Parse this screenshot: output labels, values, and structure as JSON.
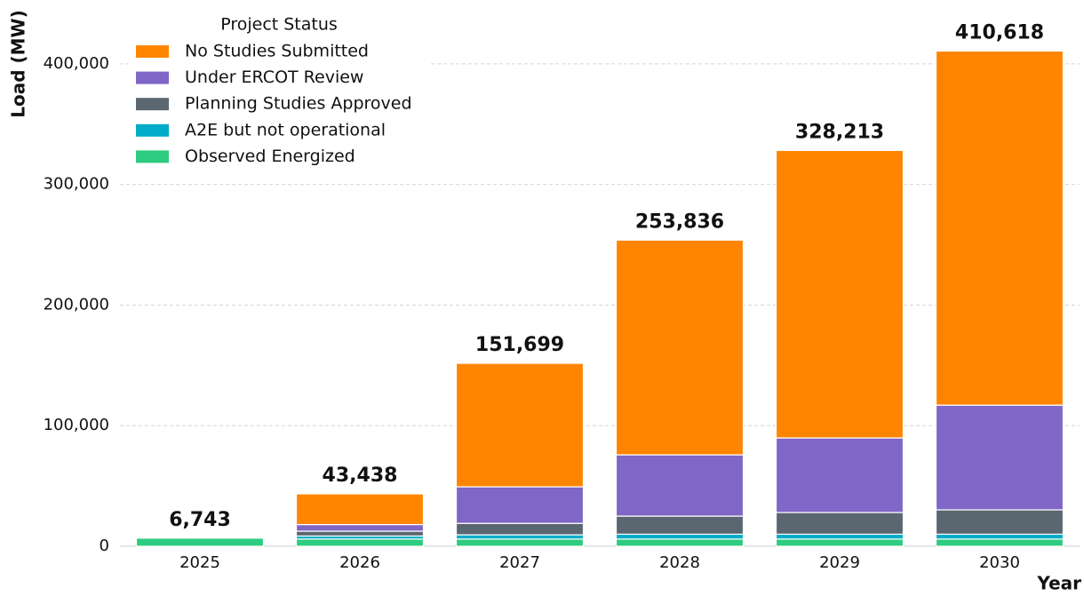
{
  "chart_data": {
    "type": "stacked_bar",
    "y_label": "Load (MW)",
    "x_label": "Year",
    "legend_title": "Project Status",
    "categories": [
      "2025",
      "2026",
      "2027",
      "2028",
      "2029",
      "2030"
    ],
    "series": [
      {
        "name": "Observed Energized",
        "color": "#2ecc80",
        "values": [
          6743,
          6000,
          6000,
          6000,
          6000,
          6000
        ]
      },
      {
        "name": "A2E but not operational",
        "color": "#00acc8",
        "values": [
          0,
          2500,
          3500,
          4000,
          4000,
          4000
        ]
      },
      {
        "name": "Planning Studies Approved",
        "color": "#5a6670",
        "values": [
          0,
          4000,
          9500,
          15000,
          18000,
          20200
        ]
      },
      {
        "name": "Under ERCOT Review",
        "color": "#8066c6",
        "values": [
          0,
          5500,
          30300,
          50800,
          61800,
          86800
        ]
      },
      {
        "name": "No Studies Submitted",
        "color": "#ff8500",
        "values": [
          0,
          25438,
          102399,
          178036,
          238413,
          293618
        ]
      }
    ],
    "totals": [
      6743,
      43438,
      151699,
      253836,
      328213,
      410618
    ],
    "total_labels": [
      "6,743",
      "43,438",
      "151,699",
      "253,836",
      "328,213",
      "410,618"
    ],
    "ylim": [
      0,
      450000
    ],
    "yticks": [
      0,
      {
        "value": 100000,
        "label": "100,000"
      },
      {
        "value": 200000,
        "label": "200,000"
      },
      {
        "value": 300000,
        "label": "300,000"
      },
      {
        "value": 400000,
        "label": "400,000"
      }
    ],
    "grid": true
  }
}
